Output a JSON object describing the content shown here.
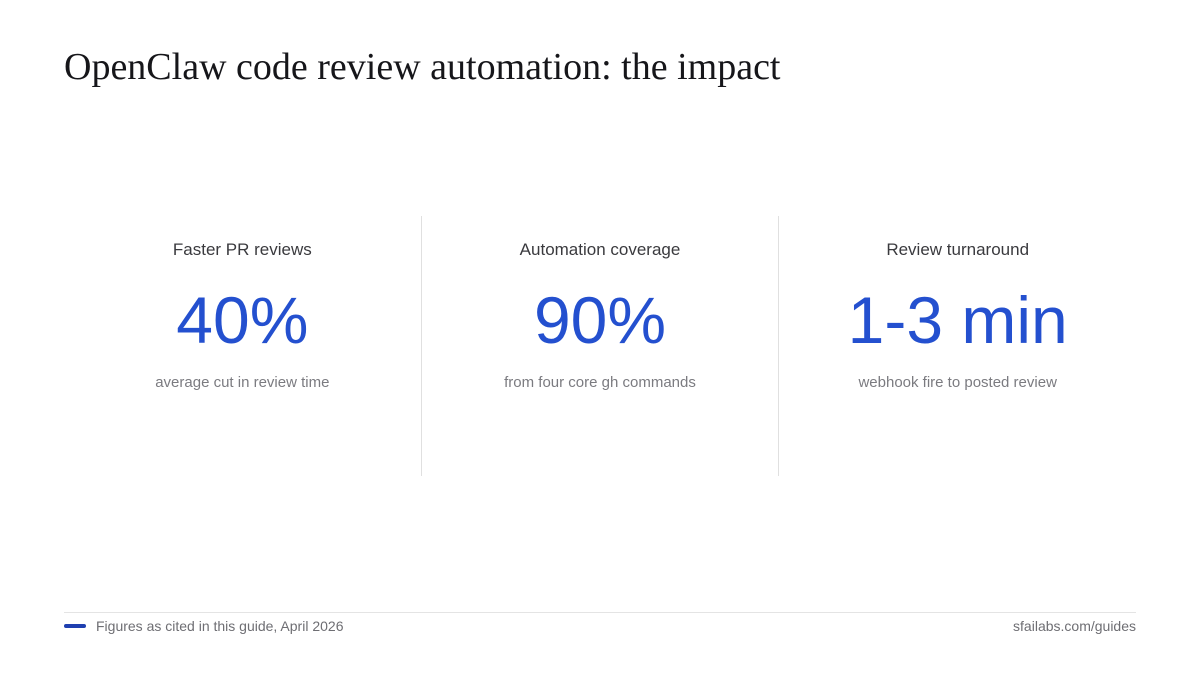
{
  "title": "OpenClaw code review automation: the impact",
  "accent_color": "#2450cf",
  "stats": [
    {
      "label": "Faster PR reviews",
      "value": "40%",
      "description": "average cut in review time"
    },
    {
      "label": "Automation coverage",
      "value": "90%",
      "description": "from four core gh commands"
    },
    {
      "label": "Review turnaround",
      "value": "1-3 min",
      "description": "webhook fire to posted review"
    }
  ],
  "footer": {
    "note": "Figures as cited in this guide, April 2026",
    "source": "sfailabs.com/guides"
  }
}
